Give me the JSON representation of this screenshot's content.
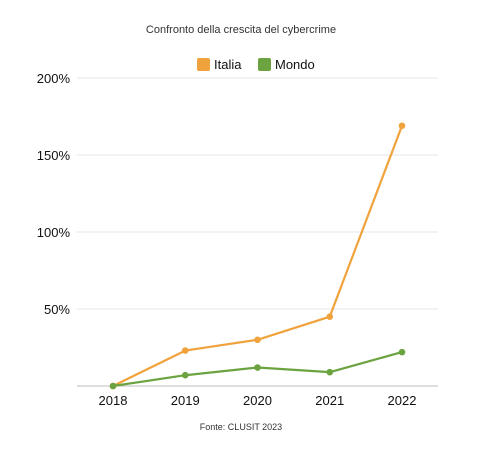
{
  "chart_data": {
    "type": "line",
    "title": "Confronto della crescita del cybercrime",
    "source": "Fonte: CLUSIT 2023",
    "x": [
      "2018",
      "2019",
      "2020",
      "2021",
      "2022"
    ],
    "ylim": [
      0,
      200
    ],
    "yticks": [
      {
        "value": 50,
        "label": "50%"
      },
      {
        "value": 100,
        "label": "100%"
      },
      {
        "value": 150,
        "label": "150%"
      },
      {
        "value": 200,
        "label": "200%"
      }
    ],
    "grid": true,
    "legend_position": "top-center",
    "series": [
      {
        "name": "Italia",
        "color": "#f0a23c",
        "values": [
          0,
          23,
          30,
          45,
          169
        ]
      },
      {
        "name": "Mondo",
        "color": "#6aa33f",
        "values": [
          0,
          7,
          12,
          9,
          22
        ]
      }
    ]
  }
}
